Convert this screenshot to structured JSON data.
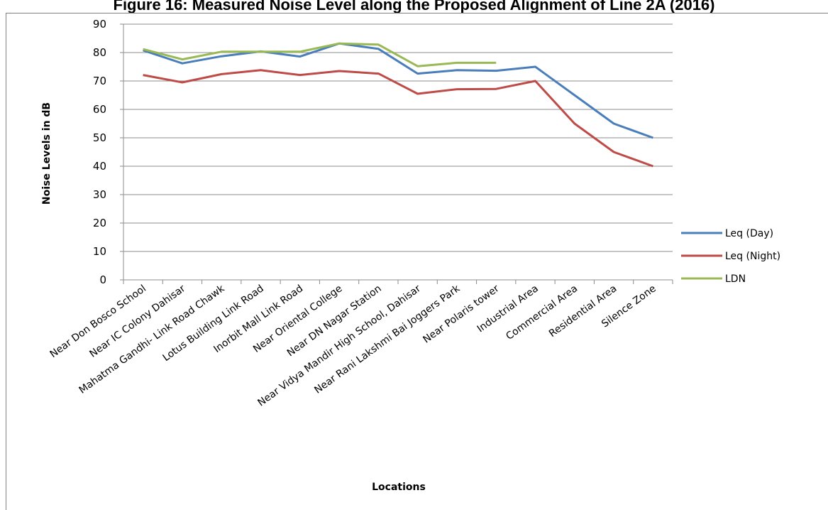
{
  "figure_title": "Figure 16: Measured Noise Level along the Proposed Alignment of Line 2A (2016)",
  "chart_data": {
    "type": "line",
    "xlabel": "Locations",
    "ylabel": "Noise Levels in dB",
    "ylim": [
      0,
      90
    ],
    "yticks": [
      0,
      10,
      20,
      30,
      40,
      50,
      60,
      70,
      80,
      90
    ],
    "grid": true,
    "legend_position": "right",
    "categories": [
      "Near Don Bosco School",
      "Near IC Colony Dahisar",
      "Mahatma Gandhi- Link Road Chawk",
      "Lotus Building Link Road",
      "Inorbit Mall Link Road",
      "Near Oriental College",
      "Near DN Nagar Station",
      "Near Vidya Mandir High School, Dahisar",
      "Near Rani Lakshmi Bai Joggers Park",
      "Near Polaris tower",
      "Industrial Area",
      "Commercial Area",
      "Residential Area",
      "Silence Zone"
    ],
    "series": [
      {
        "name": "Leq (Day)",
        "color": "#4a7ebb",
        "values": [
          80.8,
          76.2,
          78.7,
          80.4,
          78.6,
          83.2,
          81.3,
          72.6,
          73.8,
          73.6,
          75,
          65,
          55,
          50
        ]
      },
      {
        "name": "Leq (Night)",
        "color": "#be4b48",
        "values": [
          72.1,
          69.5,
          72.4,
          73.8,
          72.1,
          73.5,
          72.6,
          65.5,
          67.1,
          67.2,
          70,
          55,
          45,
          40
        ]
      },
      {
        "name": "LDN",
        "color": "#98b954",
        "values": [
          81.2,
          77.6,
          80.3,
          80.3,
          80.3,
          83.2,
          82.8,
          75.2,
          76.4,
          76.4,
          null,
          null,
          null,
          null
        ]
      }
    ]
  }
}
